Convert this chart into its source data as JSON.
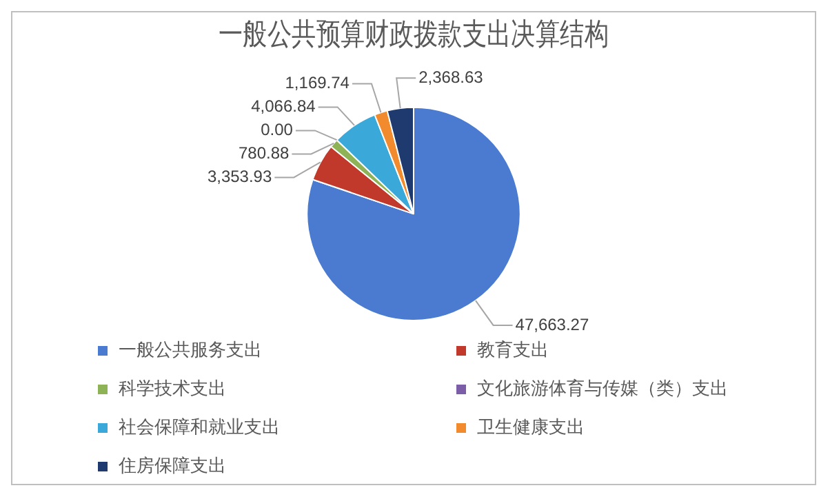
{
  "chart_data": {
    "type": "pie",
    "title": "一般公共预算财政拨款支出决算结构",
    "categories": [
      "一般公共服务支出",
      "教育支出",
      "科学技术支出",
      "文化旅游体育与传媒（类）支出",
      "社会保障和就业支出",
      "卫生健康支出",
      "住房保障支出"
    ],
    "values": [
      47663.27,
      3353.93,
      780.88,
      0.0,
      4066.84,
      1169.74,
      2368.63
    ],
    "value_labels": [
      "47,663.27",
      "3,353.93",
      "780.88",
      "0.00",
      "4,066.84",
      "1,169.74",
      "2,368.63"
    ],
    "colors": [
      "#4a7bd0",
      "#c0392b",
      "#8db356",
      "#7b5ea7",
      "#3aa8d8",
      "#f28a2e",
      "#1f3a6e"
    ],
    "legend": "bottom"
  }
}
